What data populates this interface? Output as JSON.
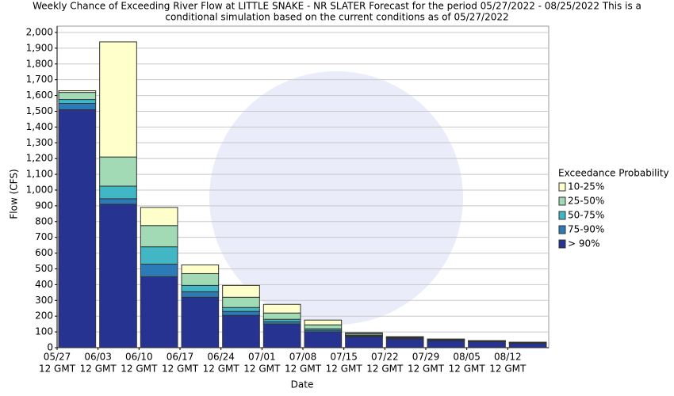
{
  "chart_data": {
    "type": "stacked_bar",
    "title": [
      "Weekly Chance of Exceeding River Flow at LITTLE SNAKE - NR SLATER Forecast for the period 05/27/2022 - 08/25/2022 This is a",
      "conditional simulation based on the current conditions as of 05/27/2022"
    ],
    "xlabel": "Date",
    "ylabel": "Flow (CFS)",
    "categories": [
      "05/27",
      "06/03",
      "06/10",
      "06/17",
      "06/24",
      "07/01",
      "07/08",
      "07/15",
      "07/22",
      "07/29",
      "08/05",
      "08/12"
    ],
    "category_sublabel": "12 GMT",
    "legend_title": "Exceedance Probability",
    "series": [
      {
        "name": "> 90%",
        "color": "#263391",
        "values": [
          1510,
          910,
          450,
          320,
          205,
          150,
          100,
          70,
          55,
          45,
          38,
          28
        ]
      },
      {
        "name": "75-90%",
        "color": "#2c7bb6",
        "values": [
          40,
          35,
          80,
          35,
          25,
          15,
          10,
          5,
          5,
          3,
          2,
          2
        ]
      },
      {
        "name": "50-75%",
        "color": "#41b6c4",
        "values": [
          25,
          80,
          110,
          40,
          25,
          15,
          10,
          5,
          3,
          2,
          2,
          2
        ]
      },
      {
        "name": "25-50%",
        "color": "#a1dab4",
        "values": [
          45,
          185,
          135,
          75,
          65,
          40,
          25,
          10,
          5,
          3,
          2,
          2
        ]
      },
      {
        "name": "10-25%",
        "color": "#ffffcc",
        "values": [
          10,
          730,
          115,
          55,
          75,
          55,
          30,
          5,
          2,
          2,
          1,
          1
        ]
      }
    ],
    "ylim": [
      0,
      2040
    ],
    "yticks": [
      0,
      100,
      200,
      300,
      400,
      500,
      600,
      700,
      800,
      900,
      {
        "value": 1000,
        "label": "1,000"
      },
      {
        "value": 1100,
        "label": "1,100"
      },
      {
        "value": 1200,
        "label": "1,200"
      },
      {
        "value": 1300,
        "label": "1,300"
      },
      {
        "value": 1400,
        "label": "1,400"
      },
      {
        "value": 1500,
        "label": "1,500"
      },
      {
        "value": 1600,
        "label": "1,600"
      },
      {
        "value": 1700,
        "label": "1,700"
      },
      {
        "value": 1800,
        "label": "1,800"
      },
      {
        "value": 1900,
        "label": "1,900"
      },
      {
        "value": 2000,
        "label": "2,000"
      }
    ],
    "grid": true
  }
}
